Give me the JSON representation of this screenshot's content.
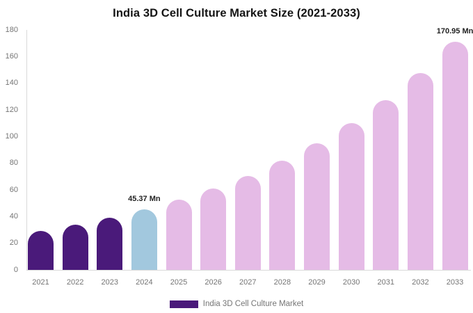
{
  "title": "India 3D Cell Culture Market Size (2021-2033)",
  "legend": {
    "label": "India 3D Cell Culture Market",
    "swatch_color": "#4A1A7A"
  },
  "chart_data": {
    "type": "bar",
    "title": "India 3D Cell Culture Market Size (2021-2033)",
    "categories": [
      "2021",
      "2022",
      "2023",
      "2024",
      "2025",
      "2026",
      "2027",
      "2028",
      "2029",
      "2030",
      "2031",
      "2032",
      "2033"
    ],
    "values": [
      29.2,
      33.8,
      39.2,
      45.37,
      52.6,
      60.9,
      70.6,
      81.8,
      94.8,
      109.9,
      127.3,
      147.5,
      170.95
    ],
    "unit": "Mn",
    "bar_colors": [
      "#4A1A7A",
      "#4A1A7A",
      "#4A1A7A",
      "#A2C8DE",
      "#E5BBE6",
      "#E5BBE6",
      "#E5BBE6",
      "#E5BBE6",
      "#E5BBE6",
      "#E5BBE6",
      "#E5BBE6",
      "#E5BBE6",
      "#E5BBE6"
    ],
    "data_labels": [
      {
        "category": "2024",
        "text": "45.37 Mn"
      },
      {
        "category": "2033",
        "text": "170.95 Mn"
      }
    ],
    "xlabel": "",
    "ylabel": "",
    "ylim": [
      0,
      180
    ],
    "y_ticks": [
      "0",
      "20",
      "40",
      "60",
      "80",
      "100",
      "120",
      "140",
      "160",
      "180"
    ],
    "grid": false,
    "legend_position": "bottom",
    "colors": {
      "axis_line": "#d9d9d9",
      "tick_label": "#757575",
      "data_label": "#222222",
      "title": "#141414",
      "historical_bar": "#4A1A7A",
      "base_year_bar": "#A2C8DE",
      "forecast_bar": "#E5BBE6"
    }
  }
}
